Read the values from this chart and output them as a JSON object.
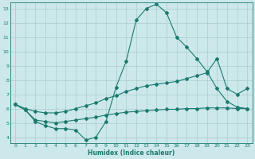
{
  "xlabel": "Humidex (Indice chaleur)",
  "bg_color": "#cce8eb",
  "grid_color": "#aacccc",
  "line_color": "#1a7a6e",
  "xlim": [
    -0.5,
    23.5
  ],
  "ylim": [
    3.6,
    13.4
  ],
  "xticks": [
    0,
    1,
    2,
    3,
    4,
    5,
    6,
    7,
    8,
    9,
    10,
    11,
    12,
    13,
    14,
    15,
    16,
    17,
    18,
    19,
    20,
    21,
    22,
    23
  ],
  "yticks": [
    4,
    5,
    6,
    7,
    8,
    9,
    10,
    11,
    12,
    13
  ],
  "line1_x": [
    0,
    1,
    2,
    3,
    4,
    5,
    6,
    7,
    8,
    9,
    10,
    11,
    12,
    13,
    14,
    15,
    16,
    17,
    18,
    19,
    20,
    21,
    22,
    23
  ],
  "line1_y": [
    6.3,
    5.9,
    5.1,
    4.8,
    4.6,
    4.6,
    4.5,
    3.8,
    4.0,
    5.1,
    7.5,
    9.3,
    12.2,
    13.0,
    13.3,
    12.7,
    11.0,
    10.3,
    9.5,
    8.6,
    7.4,
    6.5,
    6.1,
    6.0
  ],
  "line2_x": [
    0,
    1,
    2,
    3,
    4,
    5,
    6,
    7,
    8,
    9,
    10,
    11,
    12,
    13,
    14,
    15,
    16,
    17,
    18,
    19,
    20,
    21,
    22,
    23
  ],
  "line2_y": [
    6.3,
    6.0,
    5.8,
    5.7,
    5.7,
    5.8,
    6.0,
    6.2,
    6.4,
    6.7,
    6.9,
    7.2,
    7.4,
    7.6,
    7.7,
    7.8,
    7.9,
    8.1,
    8.3,
    8.5,
    9.5,
    7.4,
    7.0,
    7.4
  ],
  "line3_x": [
    0,
    1,
    2,
    3,
    4,
    5,
    6,
    7,
    8,
    9,
    10,
    11,
    12,
    13,
    14,
    15,
    16,
    17,
    18,
    19,
    20,
    21,
    22,
    23
  ],
  "line3_y": [
    6.3,
    5.9,
    5.2,
    5.1,
    5.0,
    5.1,
    5.2,
    5.3,
    5.4,
    5.55,
    5.65,
    5.75,
    5.8,
    5.85,
    5.9,
    5.95,
    5.95,
    6.0,
    6.0,
    6.05,
    6.05,
    6.05,
    6.0,
    6.0
  ]
}
